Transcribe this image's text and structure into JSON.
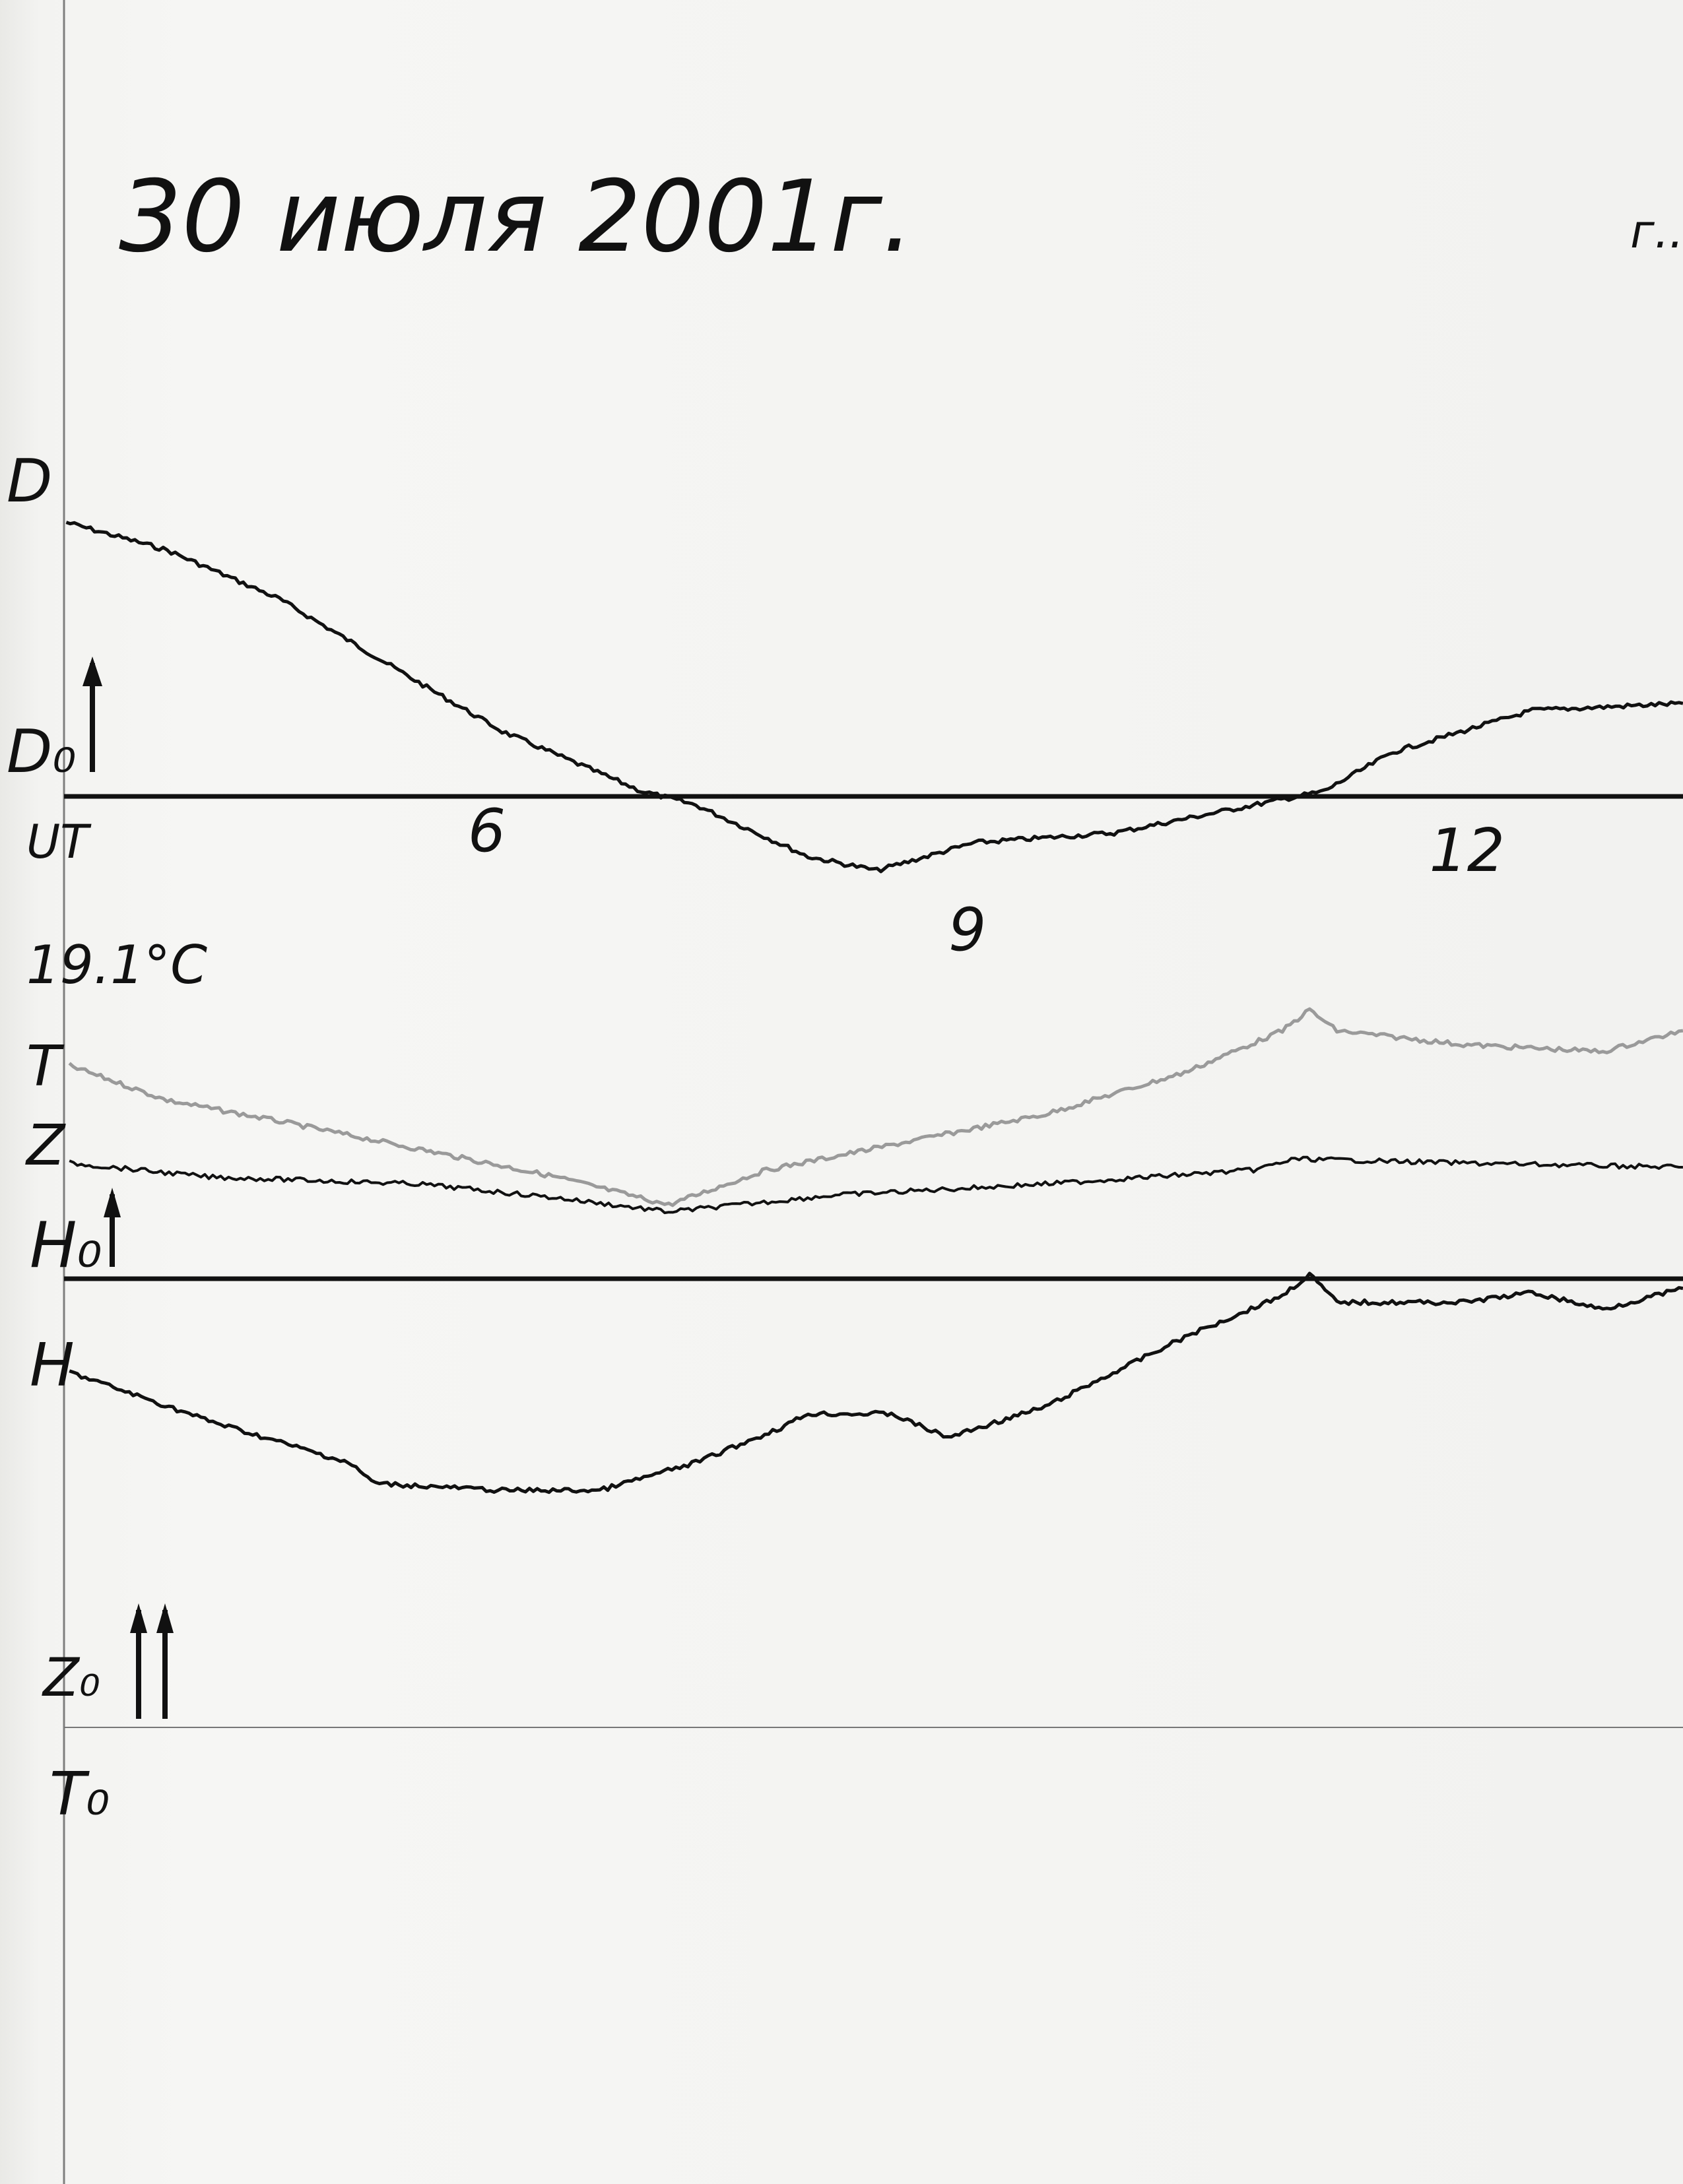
{
  "header": {
    "title": "30 июля 2001г.",
    "corner_mark": "г.."
  },
  "labels": {
    "D": "D",
    "D0": "D₀",
    "UT": "UT",
    "temperature": "19.1°C",
    "T": "T",
    "Z": "Z",
    "H0": "H₀",
    "H": "H",
    "Z0": "Z₀",
    "T0": "T₀"
  },
  "chart_data": {
    "type": "line",
    "xlabel": "UT",
    "x_ticks": [
      {
        "value": 6,
        "label": "6"
      },
      {
        "value": 9,
        "label": "9"
      },
      {
        "value": 12,
        "label": "12"
      }
    ],
    "xlim": [
      3.3,
      13.5
    ],
    "y_units": "relative trace deflection (no scale printed)",
    "grid": false,
    "colors": {
      "trace": "#111111",
      "temperature": "#9a9a9a",
      "paper": "#f4f4f2"
    },
    "series": [
      {
        "name": "D",
        "baseline": "D0",
        "x": [
          3.37,
          4.0,
          4.7,
          5.57,
          6.09,
          6.96,
          7.3,
          8.0,
          8.43,
          9.04,
          9.91,
          10.78,
          11.22,
          11.65,
          12.52,
          13.46
        ],
        "y": [
          19.7,
          17.7,
          14.2,
          8.2,
          4.7,
          0.4,
          -0.6,
          -4.3,
          -5.3,
          -3.3,
          -2.6,
          -0.6,
          0.4,
          3.2,
          6.2,
          6.7
        ]
      },
      {
        "name": "T",
        "baseline": "H0",
        "x": [
          3.39,
          4.0,
          4.7,
          5.57,
          6.43,
          7.13,
          7.74,
          8.61,
          9.48,
          10.35,
          10.96,
          11.13,
          11.3,
          12.09,
          12.96,
          13.46
        ],
        "y": [
          15.3,
          12.8,
          11.3,
          9.3,
          7.3,
          5.3,
          7.8,
          9.8,
          11.8,
          14.8,
          17.8,
          19.3,
          17.8,
          16.8,
          16.3,
          17.8
        ]
      },
      {
        "name": "Z",
        "baseline": "H0",
        "x": [
          3.39,
          4.26,
          5.57,
          6.43,
          7.13,
          8.17,
          9.48,
          10.78,
          11.04,
          12.09,
          13.46
        ],
        "y": [
          8.3,
          7.3,
          6.8,
          5.8,
          4.8,
          6.0,
          6.8,
          7.8,
          8.6,
          8.3,
          8.0
        ]
      },
      {
        "name": "H",
        "baseline": "H0",
        "x": [
          3.39,
          4.26,
          5.13,
          5.3,
          6.09,
          6.7,
          7.3,
          7.83,
          8.0,
          8.52,
          8.87,
          9.48,
          10.35,
          10.96,
          11.13,
          11.3,
          12.09,
          12.52,
          12.96,
          13.46
        ],
        "y": [
          -6.7,
          -10.2,
          -13.2,
          -14.7,
          -15.2,
          -15.2,
          -13.2,
          -10.7,
          -9.7,
          -9.7,
          -11.4,
          -9.2,
          -4.2,
          -1.2,
          0.3,
          -1.7,
          -1.7,
          -1.0,
          -2.2,
          -0.7
        ]
      }
    ]
  }
}
